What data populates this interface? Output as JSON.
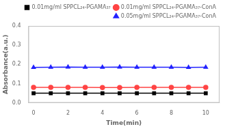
{
  "chart_data": {
    "type": "line",
    "x": [
      0,
      1,
      2,
      3,
      4,
      5,
      6,
      7,
      8,
      9,
      10
    ],
    "series": [
      {
        "name": "0.01mg/ml SPPCL₂₄-PGAMA₃₇",
        "color": "black",
        "marker": "square",
        "values": [
          0.05,
          0.05,
          0.05,
          0.05,
          0.05,
          0.05,
          0.05,
          0.05,
          0.05,
          0.05,
          0.05
        ]
      },
      {
        "name": "0.01mg/ml SPPCL₂₄-PGAMA₃₇-ConA",
        "color": "#ff4444",
        "marker": "circle",
        "values": [
          0.08,
          0.08,
          0.08,
          0.08,
          0.079,
          0.079,
          0.08,
          0.08,
          0.08,
          0.08,
          0.08
        ]
      },
      {
        "name": "0.05mg/ml SPPCL₂₄-PGAMA₃₇-ConA",
        "color": "#2222ff",
        "marker": "triangle",
        "values": [
          0.184,
          0.185,
          0.186,
          0.185,
          0.185,
          0.186,
          0.185,
          0.185,
          0.185,
          0.184,
          0.185
        ]
      }
    ],
    "x_label": "Time(min)",
    "y_label": "Absorbance(a.u.)",
    "xlim": [
      -0.3,
      10.8
    ],
    "xticks": [
      0,
      2,
      4,
      6,
      8,
      10
    ],
    "ylim": [
      0.0,
      0.4
    ],
    "yticks": [
      {
        "value": 0.0,
        "label": "0.0"
      },
      0.1,
      0.2,
      0.3,
      0.4
    ],
    "grid": false,
    "legend": "upper right"
  }
}
